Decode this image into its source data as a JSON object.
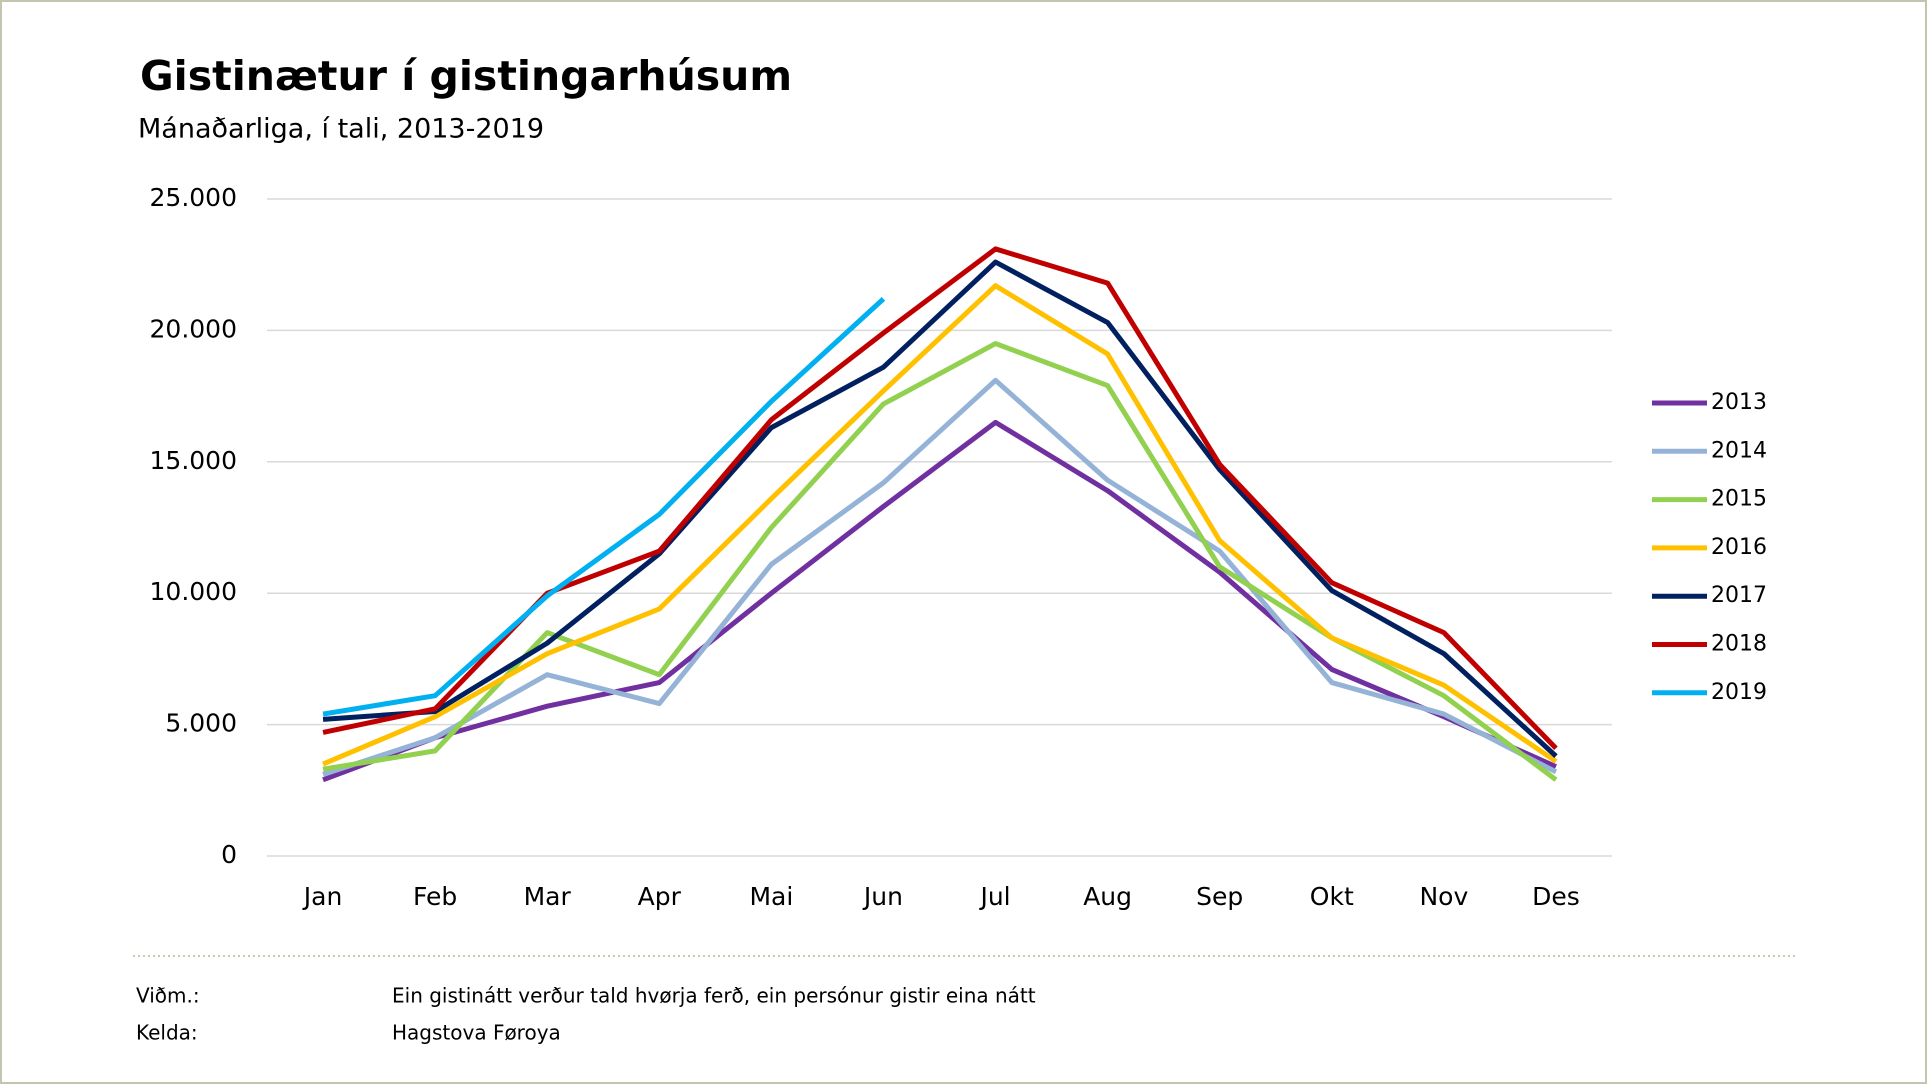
{
  "chart_data": {
    "type": "line",
    "title": "Gistinætur í gistingarhúsum",
    "subtitle": "Mánaðarliga, í tali, 2013-2019",
    "categories": [
      "Jan",
      "Feb",
      "Mar",
      "Apr",
      "Mai",
      "Jun",
      "Jul",
      "Aug",
      "Sep",
      "Okt",
      "Nov",
      "Des"
    ],
    "ylim": [
      0,
      25000
    ],
    "yticks": [
      0,
      {
        "value": 5000,
        "label": "5.000"
      },
      {
        "value": 10000,
        "label": "10.000"
      },
      {
        "value": 15000,
        "label": "15.000"
      },
      {
        "value": 20000,
        "label": "20.000"
      },
      {
        "value": 25000,
        "label": "25.000"
      }
    ],
    "grid": true,
    "legend": "right",
    "series": [
      {
        "name": "2013",
        "color": "#7030a0",
        "values": [
          2900,
          4500,
          5700,
          6600,
          10000,
          13300,
          16500,
          13900,
          10800,
          7100,
          5300,
          3400
        ]
      },
      {
        "name": "2014",
        "color": "#95b3d7",
        "values": [
          3100,
          4500,
          6900,
          5800,
          11100,
          14200,
          18100,
          14300,
          11600,
          6600,
          5400,
          3200
        ]
      },
      {
        "name": "2015",
        "color": "#92d050",
        "values": [
          3300,
          4000,
          8500,
          6900,
          12500,
          17200,
          19500,
          17900,
          11000,
          8300,
          6100,
          2900
        ]
      },
      {
        "name": "2016",
        "color": "#ffc000",
        "values": [
          3500,
          5300,
          7700,
          9400,
          13600,
          17700,
          21700,
          19100,
          12000,
          8300,
          6500,
          3600
        ]
      },
      {
        "name": "2017",
        "color": "#002060",
        "values": [
          5200,
          5500,
          8100,
          11500,
          16300,
          18600,
          22600,
          20300,
          14700,
          10100,
          7700,
          3800
        ]
      },
      {
        "name": "2018",
        "color": "#c00000",
        "values": [
          4700,
          5600,
          10000,
          11600,
          16600,
          19900,
          23100,
          21800,
          14900,
          10400,
          8500,
          4100
        ]
      },
      {
        "name": "2019",
        "color": "#00b0f0",
        "values": [
          5400,
          6100,
          9900,
          13000,
          17300,
          21200,
          null,
          null,
          null,
          null,
          null,
          null
        ]
      }
    ]
  },
  "notes": [
    {
      "label": "Viðm.:",
      "text": "Ein gistinátt verður tald hvørja ferð, ein persónur gistir eina nátt"
    },
    {
      "label": "Kelda:",
      "text": "Hagstova Føroya"
    }
  ]
}
